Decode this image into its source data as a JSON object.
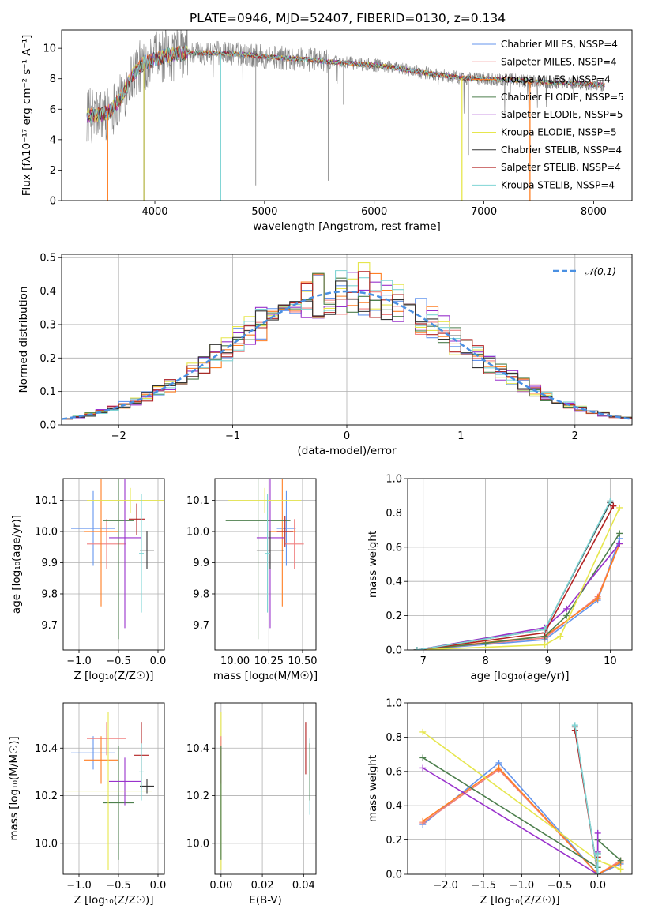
{
  "figure": {
    "title": "PLATE=0946, MJD=52407, FIBERID=0130, z=0.134"
  },
  "chart_data": [
    {
      "id": "spectrum",
      "type": "line",
      "xlabel": "wavelength [Angstrom, rest frame]",
      "ylabel": "Flux [fλ10⁻¹⁷ erg cm⁻² s⁻¹ A⁻¹]",
      "xlim": [
        3150,
        8350
      ],
      "ylim": [
        0,
        11.2
      ],
      "xticks": [
        4000,
        5000,
        6000,
        7000,
        8000
      ],
      "yticks": [
        0,
        2,
        4,
        6,
        8,
        10
      ],
      "grid": false,
      "legend_position": "top-right",
      "observed_color": "#808080",
      "continuum": {
        "x": [
          3380,
          3500,
          3600,
          3700,
          3800,
          3900,
          4000,
          4100,
          4300,
          4500,
          4800,
          5000,
          5200,
          5400,
          5600,
          5800,
          6000,
          6200,
          6400,
          6600,
          6800,
          7000,
          7200,
          7500,
          7800,
          8100
        ],
        "y": [
          5.6,
          5.6,
          5.9,
          6.9,
          8.3,
          9.0,
          9.3,
          9.5,
          9.7,
          9.7,
          9.6,
          9.45,
          9.35,
          9.25,
          9.1,
          9.0,
          8.9,
          8.7,
          8.45,
          8.25,
          8.05,
          8.0,
          7.95,
          7.8,
          7.7,
          7.6
        ]
      },
      "series": [
        {
          "name": "Chabrier MILES, NSSP=4",
          "color": "#6495ed"
        },
        {
          "name": "Salpeter MILES, NSSP=4",
          "color": "#f08080"
        },
        {
          "name": "Kroupa MILES, NSSP=4",
          "color": "#ff7f24"
        },
        {
          "name": "Chabrier ELODIE, NSSP=5",
          "color": "#4d7f4d"
        },
        {
          "name": "Salpeter ELODIE, NSSP=5",
          "color": "#9932cc"
        },
        {
          "name": "Kroupa ELODIE, NSSP=5",
          "color": "#e6e64d"
        },
        {
          "name": "Chabrier STELIB, NSSP=4",
          "color": "#333333"
        },
        {
          "name": "Salpeter STELIB, NSSP=4",
          "color": "#b22222"
        },
        {
          "name": "Kroupa STELIB, NSSP=4",
          "color": "#7fd4d4"
        }
      ],
      "drops": [
        {
          "x": 3570,
          "color": "#ff7f24"
        },
        {
          "x": 3900,
          "color": "#b8b84d"
        },
        {
          "x": 4600,
          "color": "#7fd4d4"
        },
        {
          "x": 6800,
          "color": "#e6e64d"
        },
        {
          "x": 7420,
          "color": "#ff7f24"
        }
      ]
    },
    {
      "id": "residual-histogram",
      "type": "histogram",
      "xlabel": "(data-model)/error",
      "ylabel": "Normed distribution",
      "xlim": [
        -2.5,
        2.5
      ],
      "ylim": [
        0,
        0.51
      ],
      "xticks": [
        -2,
        -1,
        0,
        1,
        2
      ],
      "yticks": [
        0.0,
        0.1,
        0.2,
        0.3,
        0.4,
        0.5
      ],
      "grid": true,
      "legend": {
        "label": "𝒩(0,1)",
        "position": "top-right"
      },
      "bins": [
        -2.5,
        -2.4,
        -2.3,
        -2.2,
        -2.1,
        -2.0,
        -1.9,
        -1.8,
        -1.7,
        -1.6,
        -1.5,
        -1.4,
        -1.3,
        -1.2,
        -1.1,
        -1.0,
        -0.9,
        -0.8,
        -0.7,
        -0.6,
        -0.5,
        -0.4,
        -0.3,
        -0.2,
        -0.1,
        0.0,
        0.1,
        0.2,
        0.3,
        0.4,
        0.5,
        0.6,
        0.7,
        0.8,
        0.9,
        1.0,
        1.1,
        1.2,
        1.3,
        1.4,
        1.5,
        1.6,
        1.7,
        1.8,
        1.9,
        2.0,
        2.1,
        2.2,
        2.3,
        2.4,
        2.5
      ],
      "normal_curve_color": "#4a90e2",
      "series_colors": [
        "#6495ed",
        "#f08080",
        "#ff7f24",
        "#4d7f4d",
        "#9932cc",
        "#e6e64d",
        "#7fd4d4",
        "#b22222",
        "#333333"
      ]
    },
    {
      "id": "age-vs-Z",
      "type": "errorbar",
      "xlabel": "Z [log₁₀(Z/Z☉)]",
      "ylabel": "age  [log₁₀(age/yr)]",
      "xlim": [
        -1.2,
        0.08
      ],
      "ylim": [
        9.62,
        10.17
      ],
      "xticks": [
        -1.0,
        -0.5,
        0.0
      ],
      "yticks": [
        9.7,
        9.8,
        9.9,
        10.0,
        10.1
      ],
      "grid": true,
      "points": [
        {
          "x": -0.82,
          "y": 10.01,
          "xerr": 0.28,
          "yerr": 0.12,
          "color": "#6495ed"
        },
        {
          "x": -0.65,
          "y": 9.96,
          "xerr": 0.25,
          "yerr": 0.08,
          "color": "#f08080"
        },
        {
          "x": -0.72,
          "y": 10.0,
          "xerr": 0.22,
          "yerr": 0.24,
          "color": "#ff7f24"
        },
        {
          "x": -0.5,
          "y": 10.035,
          "xerr": 0.2,
          "yerr": 0.38,
          "color": "#4d7f4d"
        },
        {
          "x": -0.42,
          "y": 9.98,
          "xerr": 0.2,
          "yerr": 0.29,
          "color": "#9932cc"
        },
        {
          "x": -0.35,
          "y": 10.1,
          "xerr": 0.55,
          "yerr": 0.04,
          "color": "#e6e64d"
        },
        {
          "x": -0.14,
          "y": 9.94,
          "xerr": 0.09,
          "yerr": 0.06,
          "color": "#333333"
        },
        {
          "x": -0.27,
          "y": 10.04,
          "xerr": 0.1,
          "yerr": 0.05,
          "color": "#b22222"
        },
        {
          "x": -0.21,
          "y": 9.93,
          "xerr": 0.03,
          "yerr": 0.19,
          "color": "#7fd4d4"
        }
      ]
    },
    {
      "id": "age-vs-mass",
      "type": "errorbar",
      "xlabel": "mass [log₁₀(M/M☉)]",
      "ylabel": "",
      "xlim": [
        9.85,
        10.6
      ],
      "ylim": [
        9.62,
        10.17
      ],
      "xticks": [
        10.0,
        10.25,
        10.5
      ],
      "yticks": [
        9.7,
        9.8,
        9.9,
        10.0,
        10.1
      ],
      "grid": true,
      "points": [
        {
          "x": 10.38,
          "y": 10.01,
          "xerr": 0.07,
          "yerr": 0.12,
          "color": "#6495ed"
        },
        {
          "x": 10.44,
          "y": 9.96,
          "xerr": 0.07,
          "yerr": 0.08,
          "color": "#f08080"
        },
        {
          "x": 10.35,
          "y": 10.0,
          "xerr": 0.1,
          "yerr": 0.24,
          "color": "#ff7f24"
        },
        {
          "x": 10.17,
          "y": 10.035,
          "xerr": 0.24,
          "yerr": 0.38,
          "color": "#4d7f4d"
        },
        {
          "x": 10.26,
          "y": 9.98,
          "xerr": 0.1,
          "yerr": 0.29,
          "color": "#9932cc"
        },
        {
          "x": 10.22,
          "y": 10.1,
          "xerr": 0.27,
          "yerr": 0.04,
          "color": "#e6e64d"
        },
        {
          "x": 10.26,
          "y": 9.94,
          "xerr": 0.1,
          "yerr": 0.06,
          "color": "#333333"
        },
        {
          "x": 10.37,
          "y": 10.0,
          "xerr": 0.06,
          "yerr": 0.05,
          "color": "#b22222"
        },
        {
          "x": 10.24,
          "y": 9.93,
          "xerr": 0.02,
          "yerr": 0.19,
          "color": "#7fd4d4"
        }
      ]
    },
    {
      "id": "massweight-vs-age",
      "type": "line",
      "xlabel": "age  [log₁₀(age/yr)]",
      "ylabel": "mass weight",
      "xlim": [
        6.75,
        10.35
      ],
      "ylim": [
        0,
        1.0
      ],
      "xticks": [
        7,
        8,
        9,
        10
      ],
      "yticks": [
        0.0,
        0.2,
        0.4,
        0.6,
        0.8,
        1.0
      ],
      "grid": true,
      "series": [
        {
          "color": "#6495ed",
          "x": [
            6.9,
            8.95,
            9.8,
            10.15
          ],
          "y": [
            0.0,
            0.06,
            0.29,
            0.65
          ]
        },
        {
          "color": "#f08080",
          "x": [
            6.9,
            8.95,
            9.8,
            10.15
          ],
          "y": [
            0.0,
            0.07,
            0.31,
            0.62
          ]
        },
        {
          "color": "#ff7f24",
          "x": [
            6.9,
            8.95,
            9.8,
            10.15
          ],
          "y": [
            0.0,
            0.08,
            0.3,
            0.62
          ]
        },
        {
          "color": "#4d7f4d",
          "x": [
            6.9,
            8.0,
            8.95,
            9.3,
            10.15
          ],
          "y": [
            0.0,
            0.04,
            0.08,
            0.2,
            0.68
          ]
        },
        {
          "color": "#9932cc",
          "x": [
            6.9,
            8.95,
            9.3,
            10.15
          ],
          "y": [
            0.0,
            0.13,
            0.24,
            0.62
          ]
        },
        {
          "color": "#e6e64d",
          "x": [
            6.9,
            8.95,
            9.2,
            10.15
          ],
          "y": [
            0.0,
            0.03,
            0.08,
            0.83
          ]
        },
        {
          "color": "#333333",
          "x": [
            6.9,
            8.95,
            10.0
          ],
          "y": [
            0.0,
            0.12,
            0.86
          ]
        },
        {
          "color": "#b22222",
          "x": [
            6.9,
            8.95,
            10.05
          ],
          "y": [
            0.0,
            0.1,
            0.84
          ]
        },
        {
          "color": "#7fd4d4",
          "x": [
            6.9,
            8.95,
            10.0
          ],
          "y": [
            0.0,
            0.12,
            0.87
          ]
        }
      ]
    },
    {
      "id": "mass-vs-Z",
      "type": "errorbar",
      "xlabel": "Z [log₁₀(Z/Z☉)]",
      "ylabel": "mass [log₁₀(M/M☉)]",
      "xlim": [
        -1.2,
        0.08
      ],
      "ylim": [
        9.87,
        10.59
      ],
      "xticks": [
        -1.0,
        -0.5,
        0.0
      ],
      "yticks": [
        10.0,
        10.2,
        10.4
      ],
      "grid": true,
      "points": [
        {
          "x": -0.82,
          "y": 10.38,
          "xerr": 0.28,
          "yerr": 0.07,
          "color": "#6495ed"
        },
        {
          "x": -0.65,
          "y": 10.44,
          "xerr": 0.25,
          "yerr": 0.07,
          "color": "#f08080"
        },
        {
          "x": -0.72,
          "y": 10.35,
          "xerr": 0.22,
          "yerr": 0.1,
          "color": "#ff7f24"
        },
        {
          "x": -0.5,
          "y": 10.17,
          "xerr": 0.2,
          "yerr": 0.24,
          "color": "#4d7f4d"
        },
        {
          "x": -0.42,
          "y": 10.26,
          "xerr": 0.2,
          "yerr": 0.1,
          "color": "#9932cc"
        },
        {
          "x": -0.63,
          "y": 10.22,
          "xerr": 0.55,
          "yerr": 0.33,
          "color": "#e6e64d"
        },
        {
          "x": -0.14,
          "y": 10.24,
          "xerr": 0.09,
          "yerr": 0.03,
          "color": "#333333"
        },
        {
          "x": -0.21,
          "y": 10.37,
          "xerr": 0.1,
          "yerr": 0.14,
          "color": "#b22222"
        },
        {
          "x": -0.21,
          "y": 10.3,
          "xerr": 0.03,
          "yerr": 0.12,
          "color": "#7fd4d4"
        }
      ]
    },
    {
      "id": "mass-vs-ebv",
      "type": "errorbar",
      "xlabel": "E(B-V)",
      "ylabel": "",
      "xlim": [
        -0.003,
        0.046
      ],
      "ylim": [
        9.87,
        10.59
      ],
      "xticks": [
        0.0,
        0.02,
        0.04
      ],
      "yticks": [
        10.0,
        10.2,
        10.4
      ],
      "grid": true,
      "points": [
        {
          "x": 0.0,
          "y": 10.22,
          "xerr": 0,
          "yerr": 0.33,
          "color": "#e6e64d"
        },
        {
          "x": 0.0,
          "y": 10.35,
          "xerr": 0,
          "yerr": 0.1,
          "color": "#f08080"
        },
        {
          "x": 0.0,
          "y": 10.17,
          "xerr": 0,
          "yerr": 0.24,
          "color": "#4d7f4d"
        },
        {
          "x": 0.041,
          "y": 10.4,
          "xerr": 0,
          "yerr": 0.11,
          "color": "#b22222"
        },
        {
          "x": 0.043,
          "y": 10.28,
          "xerr": 0,
          "yerr": 0.16,
          "color": "#7fd4d4"
        },
        {
          "x": 0.043,
          "y": 10.3,
          "xerr": 0,
          "yerr": 0.12,
          "color": "#4d7f4d"
        }
      ]
    },
    {
      "id": "massweight-vs-Z",
      "type": "line",
      "xlabel": "Z [log₁₀(Z/Z☉)]",
      "ylabel": "mass weight",
      "xlim": [
        -2.5,
        0.45
      ],
      "ylim": [
        0,
        1.0
      ],
      "xticks": [
        -2.0,
        -1.5,
        -1.0,
        -0.5,
        0.0
      ],
      "yticks": [
        0.0,
        0.2,
        0.4,
        0.6,
        0.8,
        1.0
      ],
      "grid": true,
      "series": [
        {
          "color": "#6495ed",
          "x": [
            -2.3,
            -1.3,
            0.0,
            0.3
          ],
          "y": [
            0.29,
            0.65,
            0.0,
            0.06
          ]
        },
        {
          "color": "#f08080",
          "x": [
            -2.3,
            -1.3,
            0.0,
            0.3
          ],
          "y": [
            0.3,
            0.61,
            0.0,
            0.08
          ]
        },
        {
          "color": "#ff7f24",
          "x": [
            -2.3,
            -1.3,
            0.0,
            0.3
          ],
          "y": [
            0.31,
            0.62,
            0.0,
            0.07
          ]
        },
        {
          "color": "#4d7f4d",
          "x": [
            -2.3,
            0.0,
            0.0,
            0.3
          ],
          "y": [
            0.68,
            0.04,
            0.2,
            0.08
          ]
        },
        {
          "color": "#9932cc",
          "x": [
            -2.3,
            0.0,
            0.0,
            0.0
          ],
          "y": [
            0.62,
            0.0,
            0.13,
            0.24
          ]
        },
        {
          "color": "#e6e64d",
          "x": [
            -2.3,
            0.0,
            0.3
          ],
          "y": [
            0.83,
            0.08,
            0.03
          ]
        },
        {
          "color": "#333333",
          "x": [
            -0.3,
            0.0,
            0.0
          ],
          "y": [
            0.86,
            0.0,
            0.12
          ]
        },
        {
          "color": "#b22222",
          "x": [
            -0.3,
            0.0,
            0.0
          ],
          "y": [
            0.84,
            0.0,
            0.1
          ]
        },
        {
          "color": "#7fd4d4",
          "x": [
            -0.3,
            0.0,
            0.0
          ],
          "y": [
            0.87,
            0.0,
            0.12
          ]
        }
      ]
    }
  ]
}
